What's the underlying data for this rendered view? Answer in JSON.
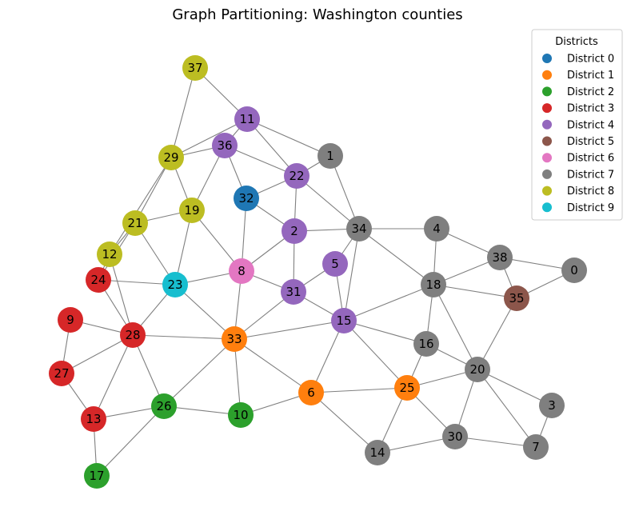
{
  "title": "Graph Partitioning: Washington counties",
  "legend": {
    "title": "Districts",
    "placement": "top-right",
    "items": [
      {
        "label": "District 0",
        "color": "#1f77b4"
      },
      {
        "label": "District 1",
        "color": "#ff7f0e"
      },
      {
        "label": "District 2",
        "color": "#2ca02c"
      },
      {
        "label": "District 3",
        "color": "#d62728"
      },
      {
        "label": "District 4",
        "color": "#9467bd"
      },
      {
        "label": "District 5",
        "color": "#8c564b"
      },
      {
        "label": "District 6",
        "color": "#e377c2"
      },
      {
        "label": "District 7",
        "color": "#7f7f7f"
      },
      {
        "label": "District 8",
        "color": "#bcbd22"
      },
      {
        "label": "District 9",
        "color": "#17becf"
      }
    ]
  },
  "nodes": [
    {
      "id": "0",
      "district": 7
    },
    {
      "id": "1",
      "district": 7
    },
    {
      "id": "2",
      "district": 4
    },
    {
      "id": "3",
      "district": 7
    },
    {
      "id": "4",
      "district": 7
    },
    {
      "id": "5",
      "district": 4
    },
    {
      "id": "6",
      "district": 1
    },
    {
      "id": "7",
      "district": 7
    },
    {
      "id": "8",
      "district": 6
    },
    {
      "id": "9",
      "district": 3
    },
    {
      "id": "10",
      "district": 2
    },
    {
      "id": "11",
      "district": 4
    },
    {
      "id": "12",
      "district": 8
    },
    {
      "id": "13",
      "district": 3
    },
    {
      "id": "14",
      "district": 7
    },
    {
      "id": "15",
      "district": 4
    },
    {
      "id": "16",
      "district": 7
    },
    {
      "id": "17",
      "district": 2
    },
    {
      "id": "18",
      "district": 7
    },
    {
      "id": "19",
      "district": 8
    },
    {
      "id": "20",
      "district": 7
    },
    {
      "id": "21",
      "district": 8
    },
    {
      "id": "22",
      "district": 4
    },
    {
      "id": "23",
      "district": 9
    },
    {
      "id": "24",
      "district": 3
    },
    {
      "id": "25",
      "district": 1
    },
    {
      "id": "26",
      "district": 2
    },
    {
      "id": "27",
      "district": 3
    },
    {
      "id": "28",
      "district": 3
    },
    {
      "id": "29",
      "district": 8
    },
    {
      "id": "30",
      "district": 7
    },
    {
      "id": "31",
      "district": 4
    },
    {
      "id": "32",
      "district": 0
    },
    {
      "id": "33",
      "district": 1
    },
    {
      "id": "34",
      "district": 7
    },
    {
      "id": "35",
      "district": 5
    },
    {
      "id": "36",
      "district": 4
    },
    {
      "id": "37",
      "district": 8
    },
    {
      "id": "38",
      "district": 7
    }
  ],
  "edges": [
    [
      "37",
      "29"
    ],
    [
      "37",
      "11"
    ],
    [
      "11",
      "29"
    ],
    [
      "11",
      "36"
    ],
    [
      "11",
      "22"
    ],
    [
      "11",
      "1"
    ],
    [
      "36",
      "29"
    ],
    [
      "36",
      "19"
    ],
    [
      "36",
      "32"
    ],
    [
      "36",
      "22"
    ],
    [
      "29",
      "21"
    ],
    [
      "29",
      "12"
    ],
    [
      "29",
      "19"
    ],
    [
      "1",
      "22"
    ],
    [
      "1",
      "34"
    ],
    [
      "22",
      "32"
    ],
    [
      "22",
      "2"
    ],
    [
      "22",
      "34"
    ],
    [
      "32",
      "2"
    ],
    [
      "32",
      "8"
    ],
    [
      "19",
      "21"
    ],
    [
      "19",
      "23"
    ],
    [
      "19",
      "8"
    ],
    [
      "21",
      "12"
    ],
    [
      "21",
      "23"
    ],
    [
      "21",
      "24"
    ],
    [
      "2",
      "34"
    ],
    [
      "2",
      "8"
    ],
    [
      "2",
      "31"
    ],
    [
      "34",
      "4"
    ],
    [
      "34",
      "5"
    ],
    [
      "34",
      "18"
    ],
    [
      "34",
      "15"
    ],
    [
      "4",
      "38"
    ],
    [
      "4",
      "18"
    ],
    [
      "38",
      "0"
    ],
    [
      "38",
      "35"
    ],
    [
      "38",
      "18"
    ],
    [
      "0",
      "35"
    ],
    [
      "5",
      "31"
    ],
    [
      "5",
      "15"
    ],
    [
      "12",
      "24"
    ],
    [
      "12",
      "28"
    ],
    [
      "24",
      "23"
    ],
    [
      "24",
      "28"
    ],
    [
      "23",
      "8"
    ],
    [
      "23",
      "28"
    ],
    [
      "23",
      "33"
    ],
    [
      "8",
      "31"
    ],
    [
      "8",
      "33"
    ],
    [
      "31",
      "33"
    ],
    [
      "31",
      "15"
    ],
    [
      "18",
      "35"
    ],
    [
      "18",
      "15"
    ],
    [
      "18",
      "16"
    ],
    [
      "18",
      "20"
    ],
    [
      "35",
      "20"
    ],
    [
      "9",
      "28"
    ],
    [
      "9",
      "27"
    ],
    [
      "28",
      "27"
    ],
    [
      "28",
      "13"
    ],
    [
      "28",
      "26"
    ],
    [
      "28",
      "33"
    ],
    [
      "33",
      "15"
    ],
    [
      "33",
      "26"
    ],
    [
      "33",
      "10"
    ],
    [
      "33",
      "6"
    ],
    [
      "15",
      "16"
    ],
    [
      "15",
      "6"
    ],
    [
      "15",
      "25"
    ],
    [
      "16",
      "20"
    ],
    [
      "16",
      "25"
    ],
    [
      "20",
      "25"
    ],
    [
      "20",
      "30"
    ],
    [
      "20",
      "3"
    ],
    [
      "20",
      "7"
    ],
    [
      "27",
      "13"
    ],
    [
      "13",
      "26"
    ],
    [
      "13",
      "17"
    ],
    [
      "26",
      "10"
    ],
    [
      "26",
      "17"
    ],
    [
      "10",
      "6"
    ],
    [
      "6",
      "25"
    ],
    [
      "6",
      "14"
    ],
    [
      "25",
      "14"
    ],
    [
      "25",
      "30"
    ],
    [
      "3",
      "7"
    ],
    [
      "30",
      "14"
    ],
    [
      "30",
      "7"
    ]
  ]
}
